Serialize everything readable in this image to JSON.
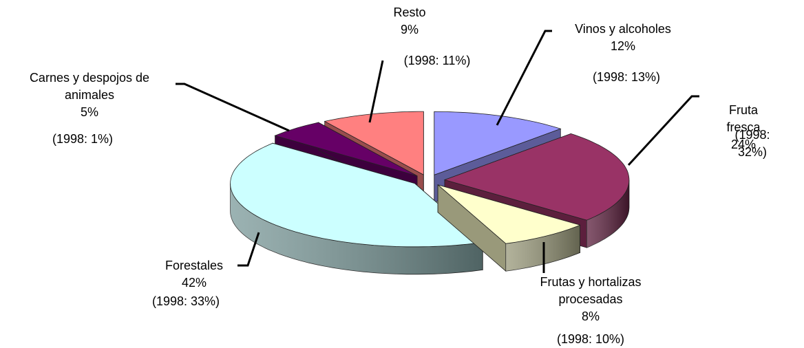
{
  "chart_data": {
    "type": "pie",
    "categories": [
      "Vinos y alcoholes",
      "Fruta fresca",
      "Frutas y hortalizas procesadas",
      "Forestales",
      "Carnes y despojos de animales",
      "Resto"
    ],
    "values": [
      12,
      24,
      8,
      42,
      5,
      9
    ],
    "value_labels": [
      "12%",
      "24%",
      "8%",
      "42%",
      "5%",
      "9%"
    ],
    "notes": [
      "(1998: 13%)",
      "(1998: 32%)",
      "(1998: 10%)",
      "(1998: 33%)",
      "(1998: 1%)",
      "(1998: 11%)"
    ],
    "colors": [
      "#9999ff",
      "#993366",
      "#ffffcc",
      "#ccffff",
      "#660066",
      "#ff8080"
    ]
  }
}
